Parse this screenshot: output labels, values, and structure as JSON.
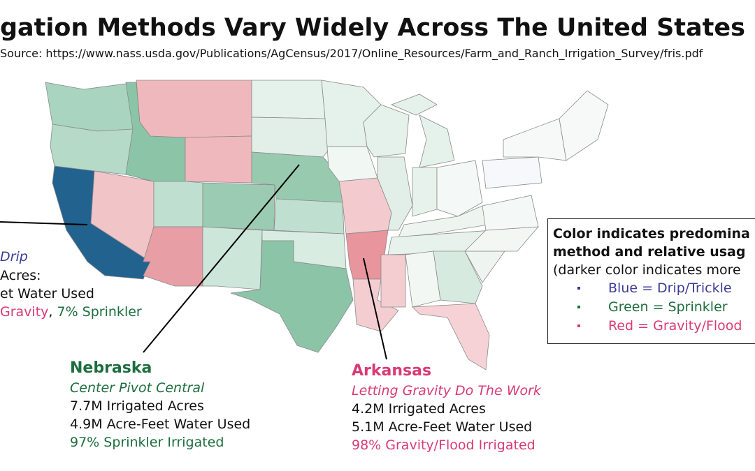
{
  "header": {
    "title": "gation Methods Vary Widely Across The United States",
    "source": "Source: https://www.nass.usda.gov/Publications/AgCensus/2017/Online_Resources/Farm_and_Ranch_Irrigation_Survey/fris.pdf"
  },
  "callouts": {
    "california": {
      "subtitle": "Drip",
      "acres": "Acres:",
      "water": "et Water Used",
      "methods": [
        "Gravity",
        ", ",
        "7% Sprinkler"
      ]
    },
    "nebraska": {
      "name": "Nebraska",
      "subtitle": "Center Pivot Central",
      "acres": "7.7M Irrigated Acres",
      "water": "4.9M Acre-Feet Water Used",
      "method": "97% Sprinkler Irrigated"
    },
    "arkansas": {
      "name": "Arkansas",
      "subtitle": "Letting Gravity Do The Work",
      "acres": "4.2M Irrigated Acres",
      "water": "5.1M Acre-Feet Water Used",
      "method": "98% Gravity/Flood Irrigated"
    }
  },
  "legend": {
    "heading": [
      "Color indicates predomina",
      "method and relative usag"
    ],
    "note": "(darker color indicates more",
    "items": [
      "Blue = Drip/Trickle",
      "Green = Sprinkler",
      "Red = Gravity/Flood"
    ]
  }
}
